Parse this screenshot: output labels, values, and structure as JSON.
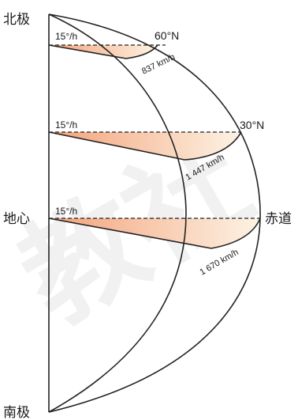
{
  "labels": {
    "north_pole": "北极",
    "south_pole": "南极",
    "earth_center": "地心",
    "equator": "赤道",
    "lat_60": "60°N",
    "lat_30": "30°N"
  },
  "angles": {
    "at_60": "15°/h",
    "at_30": "15°/h",
    "at_equator": "15°/h"
  },
  "speeds": {
    "at_60": "837 km/h",
    "at_30": "1 447 km/h",
    "at_equator": "1 670 km/h"
  },
  "watermark": "教社",
  "colors": {
    "sector_start": "#f3a27a",
    "sector_end": "#fdf3e4",
    "line": "#222222"
  }
}
